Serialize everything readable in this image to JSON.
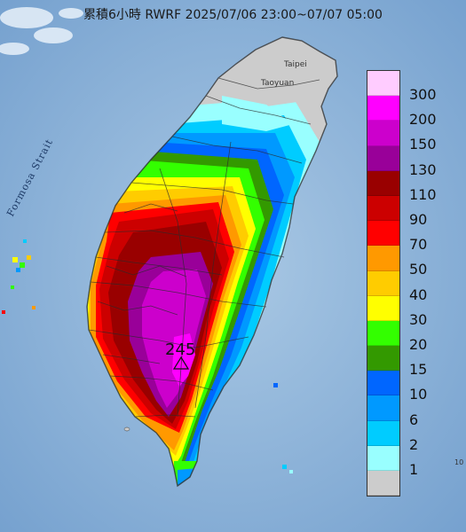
{
  "title": "累積6小時 RWRF 2025/07/06 23:00~07/07 05:00",
  "labels": {
    "taipei": "Taipei",
    "taoyuan": "Taoyuan",
    "strait": "Formosa Strait",
    "peak_value": "245",
    "edge_number": "10"
  },
  "legend": [
    {
      "label": "300",
      "color": "#ffccff"
    },
    {
      "label": "200",
      "color": "#ff00ff"
    },
    {
      "label": "150",
      "color": "#cc00cc"
    },
    {
      "label": "130",
      "color": "#990099"
    },
    {
      "label": "110",
      "color": "#990000"
    },
    {
      "label": "90",
      "color": "#cc0000"
    },
    {
      "label": "70",
      "color": "#ff0000"
    },
    {
      "label": "50",
      "color": "#ff9900"
    },
    {
      "label": "40",
      "color": "#ffcc00"
    },
    {
      "label": "30",
      "color": "#ffff00"
    },
    {
      "label": "20",
      "color": "#33ff00"
    },
    {
      "label": "15",
      "color": "#339900"
    },
    {
      "label": "10",
      "color": "#0066ff"
    },
    {
      "label": "6",
      "color": "#0099ff"
    },
    {
      "label": "2",
      "color": "#00ccff"
    },
    {
      "label": "1",
      "color": "#99ffff"
    },
    {
      "label": "",
      "color": "#cccccc"
    }
  ]
}
